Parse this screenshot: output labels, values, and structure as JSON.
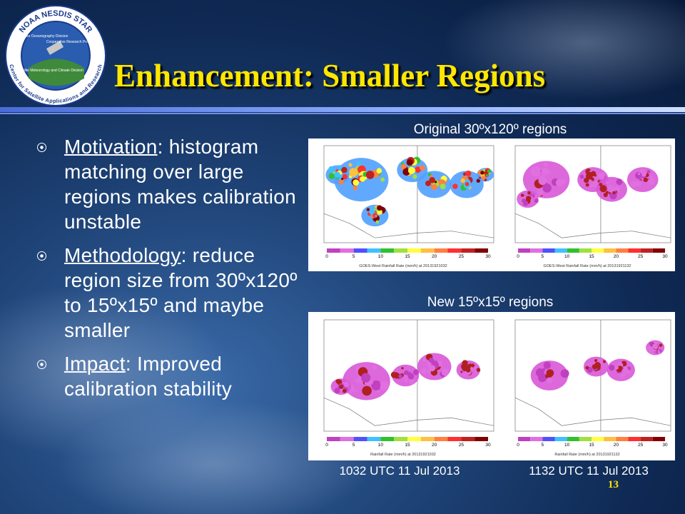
{
  "logo": {
    "ring_top": "NOAA NESDIS STAR",
    "ring_bottom": "Center for Satellite Applications and Research",
    "inner": [
      "Satellite Oceanography Division",
      "Cooperative Research Program",
      "Satellite Meteorology and Climate Division"
    ]
  },
  "title": "Enhancement: Smaller Regions",
  "bullets": [
    {
      "term": "Motivation",
      "text": ": histogram matching over large regions makes calibration unstable"
    },
    {
      "term": "Methodology",
      "text": ": reduce region size from 30ºx120º to 15ºx15º and maybe smaller"
    },
    {
      "term": "Impact",
      "text": ": Improved calibration stability"
    }
  ],
  "figures": {
    "original_label": "Original 30ºx120º regions",
    "new_label": "New 15ºx15º regions",
    "colorbar_ticks": [
      "0",
      "5",
      "10",
      "15",
      "20",
      "25",
      "30"
    ],
    "original_captions": [
      "GOES-West Rainfall Rate (mm/h) at 20131921032",
      "GOES-West Rainfall Rate (mm/h) at 20131921132"
    ],
    "new_captions": [
      "Rainfall Rate (mm/h) at 20131921032",
      "Rainfall Rate (mm/h) at 20131921132"
    ],
    "times": [
      "1032 UTC 11 Jul 2013",
      "1132 UTC 11 Jul 2013"
    ]
  },
  "page_number": "13"
}
